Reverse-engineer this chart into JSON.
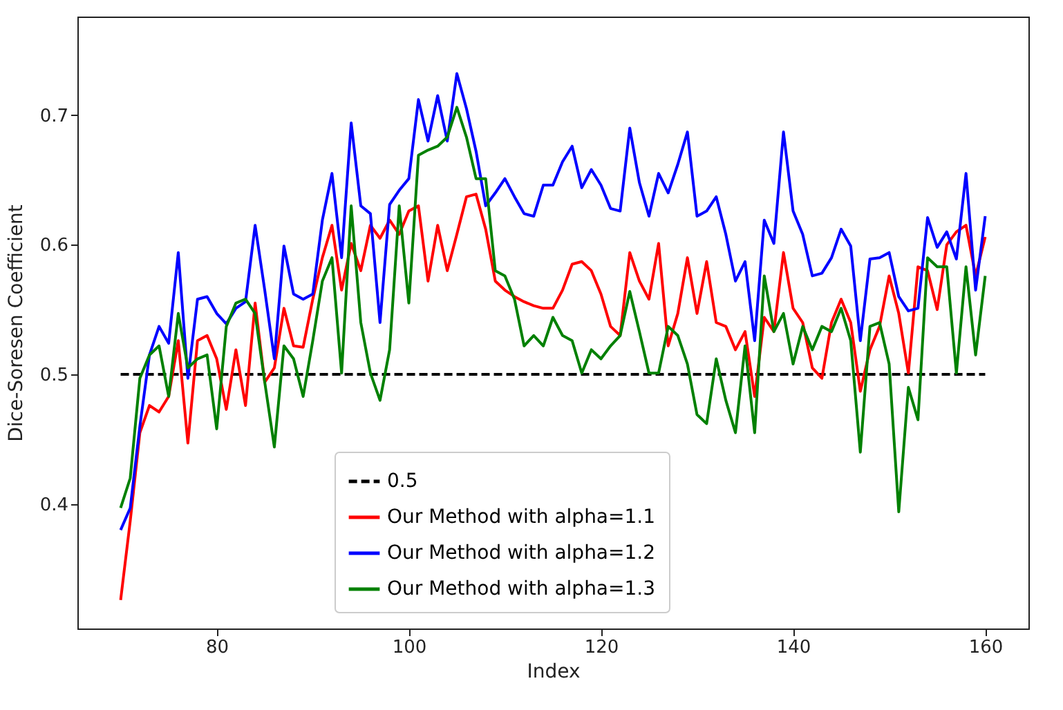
{
  "chart_data": {
    "type": "line",
    "xlabel": "Index",
    "ylabel": "Dice-Soresen Coefficient",
    "x": [
      70,
      71,
      72,
      73,
      74,
      75,
      76,
      77,
      78,
      79,
      80,
      81,
      82,
      83,
      84,
      85,
      86,
      87,
      88,
      89,
      90,
      91,
      92,
      93,
      94,
      95,
      96,
      97,
      98,
      99,
      100,
      101,
      102,
      103,
      104,
      105,
      106,
      107,
      108,
      109,
      110,
      111,
      112,
      113,
      114,
      115,
      116,
      117,
      118,
      119,
      120,
      121,
      122,
      123,
      124,
      125,
      126,
      127,
      128,
      129,
      130,
      131,
      132,
      133,
      134,
      135,
      136,
      137,
      138,
      139,
      140,
      141,
      142,
      143,
      144,
      145,
      146,
      147,
      148,
      149,
      150,
      151,
      152,
      153,
      154,
      155,
      156,
      157,
      158,
      159,
      160
    ],
    "series": [
      {
        "name": "Our Method with alpha=1.1",
        "color": "#ff0000",
        "line_style": "solid",
        "values": [
          0.326,
          0.387,
          0.455,
          0.476,
          0.471,
          0.483,
          0.526,
          0.447,
          0.526,
          0.53,
          0.512,
          0.473,
          0.519,
          0.476,
          0.555,
          0.494,
          0.505,
          0.551,
          0.522,
          0.521,
          0.558,
          0.59,
          0.615,
          0.565,
          0.601,
          0.58,
          0.615,
          0.605,
          0.619,
          0.608,
          0.626,
          0.63,
          0.572,
          0.615,
          0.58,
          0.608,
          0.637,
          0.639,
          0.612,
          0.572,
          0.565,
          0.56,
          0.556,
          0.553,
          0.551,
          0.551,
          0.565,
          0.585,
          0.587,
          0.58,
          0.562,
          0.537,
          0.53,
          0.594,
          0.572,
          0.558,
          0.601,
          0.522,
          0.547,
          0.59,
          0.547,
          0.587,
          0.54,
          0.537,
          0.519,
          0.533,
          0.483,
          0.544,
          0.533,
          0.594,
          0.551,
          0.54,
          0.505,
          0.497,
          0.54,
          0.558,
          0.54,
          0.487,
          0.519,
          0.537,
          0.576,
          0.547,
          0.501,
          0.583,
          0.58,
          0.55,
          0.6,
          0.61,
          0.615,
          0.576,
          0.606
        ]
      },
      {
        "name": "Our Method with alpha=1.2",
        "color": "#0000ff",
        "line_style": "solid",
        "values": [
          0.38,
          0.397,
          0.46,
          0.515,
          0.537,
          0.524,
          0.594,
          0.497,
          0.558,
          0.56,
          0.547,
          0.539,
          0.551,
          0.556,
          0.615,
          0.565,
          0.512,
          0.599,
          0.562,
          0.558,
          0.562,
          0.619,
          0.655,
          0.59,
          0.694,
          0.63,
          0.624,
          0.54,
          0.631,
          0.642,
          0.651,
          0.712,
          0.68,
          0.715,
          0.68,
          0.732,
          0.705,
          0.672,
          0.63,
          0.64,
          0.651,
          0.637,
          0.624,
          0.622,
          0.646,
          0.646,
          0.664,
          0.676,
          0.644,
          0.658,
          0.646,
          0.628,
          0.626,
          0.69,
          0.648,
          0.622,
          0.655,
          0.64,
          0.662,
          0.687,
          0.622,
          0.626,
          0.637,
          0.608,
          0.572,
          0.587,
          0.526,
          0.619,
          0.601,
          0.687,
          0.626,
          0.608,
          0.576,
          0.578,
          0.59,
          0.612,
          0.599,
          0.526,
          0.589,
          0.59,
          0.594,
          0.56,
          0.549,
          0.551,
          0.621,
          0.598,
          0.61,
          0.589,
          0.655,
          0.565,
          0.622
        ]
      },
      {
        "name": "Our Method with alpha=1.3",
        "color": "#008000",
        "line_style": "solid",
        "values": [
          0.397,
          0.42,
          0.497,
          0.515,
          0.522,
          0.483,
          0.547,
          0.505,
          0.512,
          0.515,
          0.458,
          0.537,
          0.555,
          0.558,
          0.547,
          0.494,
          0.444,
          0.522,
          0.512,
          0.483,
          0.526,
          0.572,
          0.59,
          0.501,
          0.63,
          0.54,
          0.501,
          0.48,
          0.519,
          0.63,
          0.555,
          0.669,
          0.673,
          0.676,
          0.683,
          0.706,
          0.683,
          0.651,
          0.651,
          0.58,
          0.576,
          0.558,
          0.522,
          0.53,
          0.522,
          0.544,
          0.53,
          0.526,
          0.501,
          0.519,
          0.512,
          0.522,
          0.53,
          0.564,
          0.533,
          0.501,
          0.501,
          0.537,
          0.53,
          0.508,
          0.469,
          0.462,
          0.512,
          0.48,
          0.455,
          0.522,
          0.455,
          0.576,
          0.533,
          0.547,
          0.508,
          0.537,
          0.519,
          0.537,
          0.533,
          0.551,
          0.526,
          0.44,
          0.537,
          0.54,
          0.508,
          0.394,
          0.49,
          0.465,
          0.59,
          0.583,
          0.583,
          0.501,
          0.583,
          0.515,
          0.576
        ]
      }
    ],
    "ref_lines": [
      {
        "axis": "y",
        "value": 0.5,
        "label": "0.5",
        "color": "#000000",
        "line_style": "dashed"
      }
    ],
    "xlim": [
      65.5,
      164.5
    ],
    "ylim": [
      0.304,
      0.776
    ],
    "xticks": [
      80,
      100,
      120,
      140,
      160
    ],
    "yticks": [
      0.4,
      0.5,
      0.6,
      0.7
    ],
    "grid": false,
    "legend": "bottom",
    "marker": "none"
  }
}
